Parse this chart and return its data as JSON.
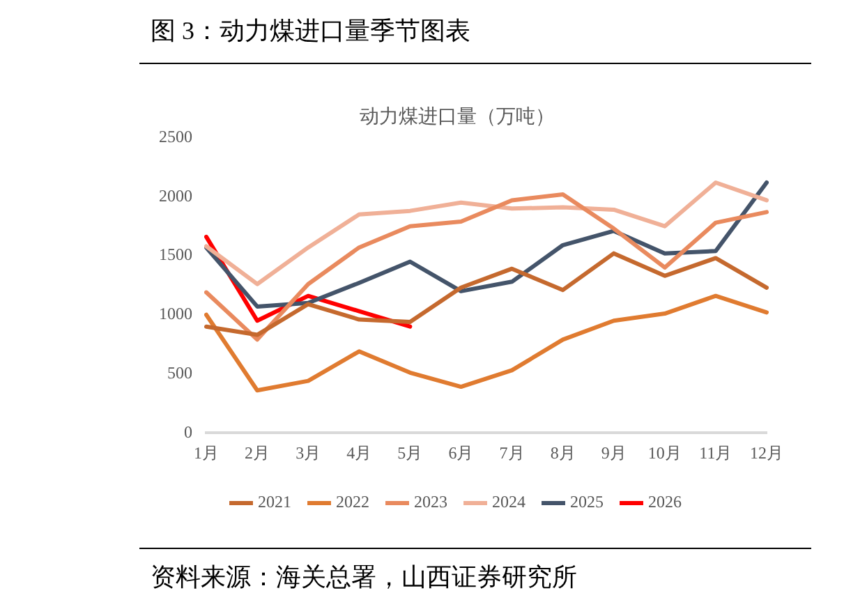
{
  "chart_data": {
    "type": "line",
    "title": "图 3：动力煤进口量季节图表",
    "subtitle": "动力煤进口量（万吨）",
    "annotations": [
      "资料来源：海关总署，山西证券研究所"
    ],
    "categories": [
      "1月",
      "2月",
      "3月",
      "4月",
      "5月",
      "6月",
      "7月",
      "8月",
      "9月",
      "10月",
      "11月",
      "12月"
    ],
    "series": [
      {
        "name": "2021",
        "color": "#c5692e",
        "values": [
          900,
          830,
          1090,
          960,
          940,
          1230,
          1390,
          1210,
          1520,
          1330,
          1480,
          1230
        ]
      },
      {
        "name": "2022",
        "color": "#e07b30",
        "values": [
          1000,
          360,
          440,
          690,
          510,
          390,
          530,
          790,
          950,
          1010,
          1160,
          1020
        ]
      },
      {
        "name": "2023",
        "color": "#e98a5e",
        "values": [
          1190,
          790,
          1260,
          1570,
          1750,
          1790,
          1970,
          2020,
          1730,
          1400,
          1780,
          1870
        ]
      },
      {
        "name": "2024",
        "color": "#f0b097",
        "values": [
          1580,
          1260,
          1570,
          1850,
          1880,
          1950,
          1900,
          1910,
          1890,
          1750,
          2120,
          1970
        ]
      },
      {
        "name": "2025",
        "color": "#44546a",
        "values": [
          1570,
          1070,
          1100,
          1270,
          1450,
          1200,
          1280,
          1590,
          1710,
          1520,
          1540,
          2120
        ]
      },
      {
        "name": "2026",
        "color": "#ff0000",
        "values": [
          1660,
          950,
          1160,
          1030,
          900,
          null,
          null,
          null,
          null,
          null,
          null,
          null
        ]
      }
    ],
    "ylim": [
      0,
      2500
    ],
    "yticks": [
      0,
      500,
      1000,
      1500,
      2000,
      2500
    ],
    "grid": false,
    "legend": "bottom",
    "marker": "none",
    "line_style": "solid"
  }
}
